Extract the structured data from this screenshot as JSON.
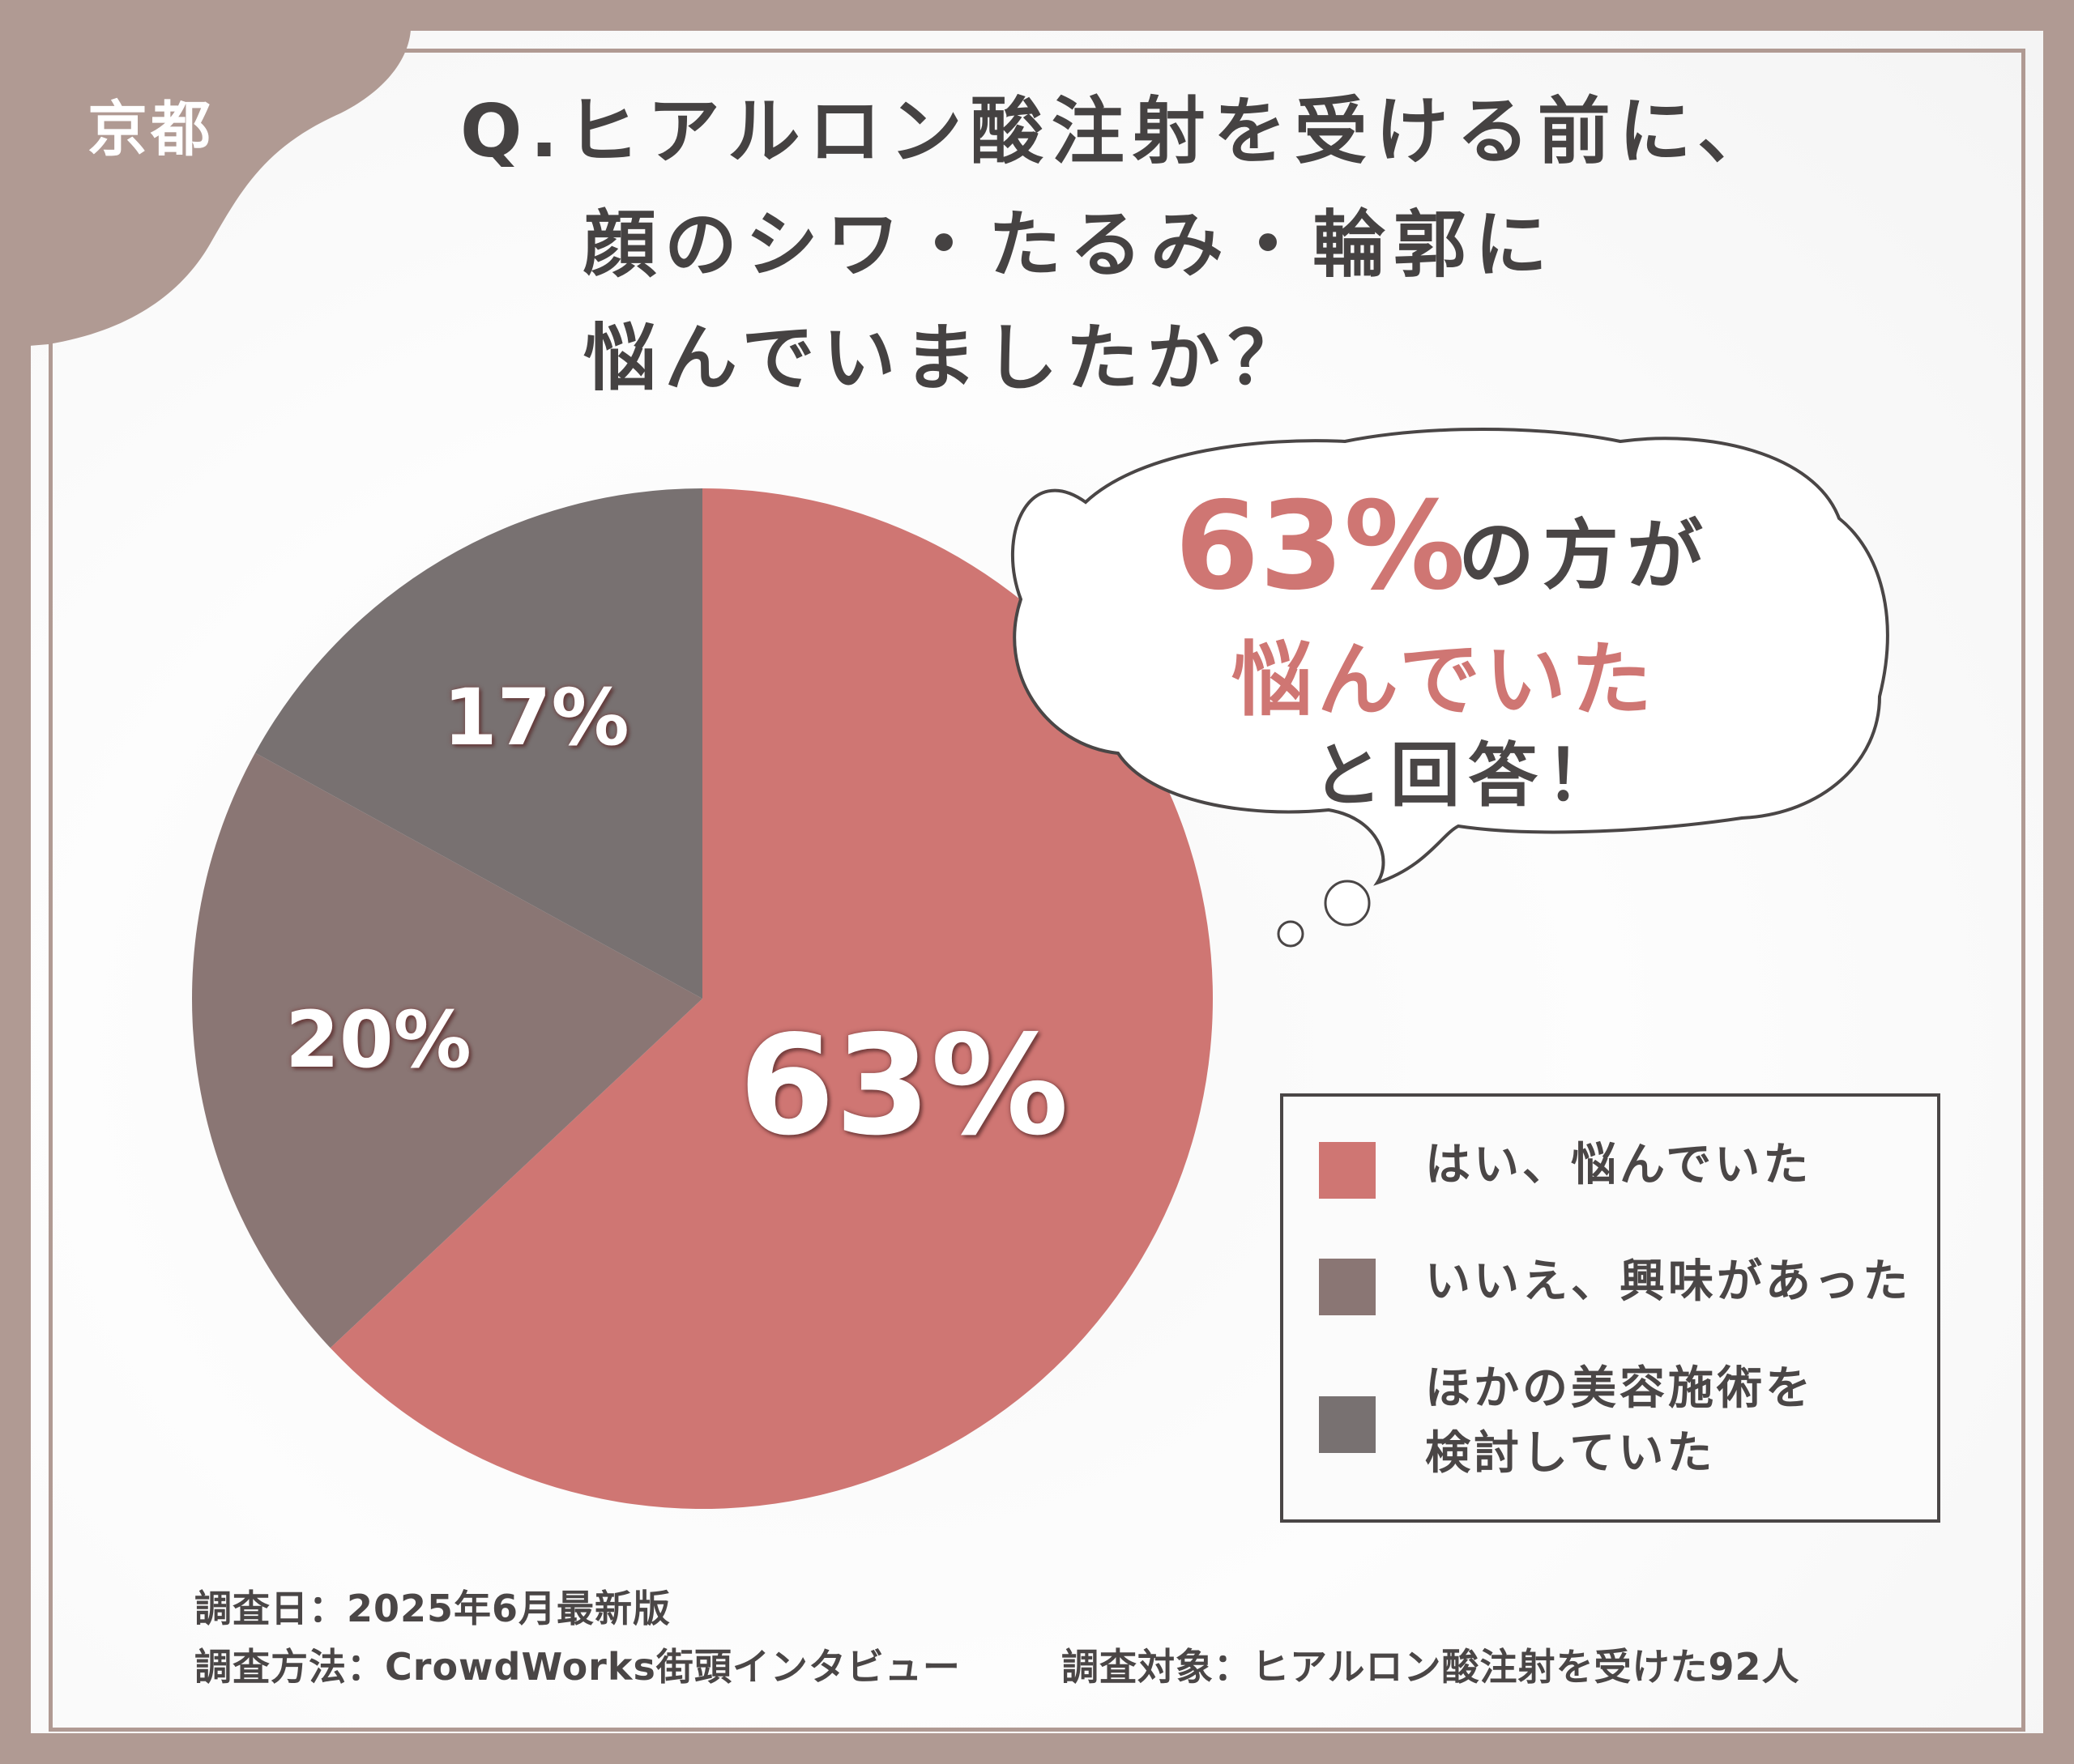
{
  "badge": {
    "region": "京都"
  },
  "title_lines": [
    "Q.ヒアルロン酸注射を受ける前に、",
    "顔のシワ・たるみ・輪郭に",
    "悩んでいましたか？"
  ],
  "callout": {
    "value": "63%",
    "line1_suffix": "の方が",
    "line2": "悩んでいた",
    "line3": "と回答！"
  },
  "colors": {
    "frame": "#b09a93",
    "yes": "#cf7673",
    "no_interested": "#8a7674",
    "other_treatment": "#787171",
    "accent_text": "#cf7673",
    "dark_text": "#4a4646"
  },
  "chart_data": {
    "type": "pie",
    "categories": [
      "はい、悩んでいた",
      "いいえ、興味があった",
      "ほかの美容施術を検討していた"
    ],
    "values": [
      63,
      20,
      17
    ],
    "value_labels": [
      "63%",
      "20%",
      "17%"
    ],
    "legend": [
      {
        "label": "はい、悩んでいた"
      },
      {
        "label": "いいえ、興味があった"
      },
      {
        "label_line1": "ほかの美容施術を",
        "label_line2": "検討していた"
      }
    ],
    "legend_placement": "bottom-right"
  },
  "footer": {
    "date": "調査日：2025年6月最新版",
    "method": "調査方法：CrowdWorks街頭インタビュー",
    "target": "調査対象：ヒアルロン酸注射を受けた92人"
  }
}
